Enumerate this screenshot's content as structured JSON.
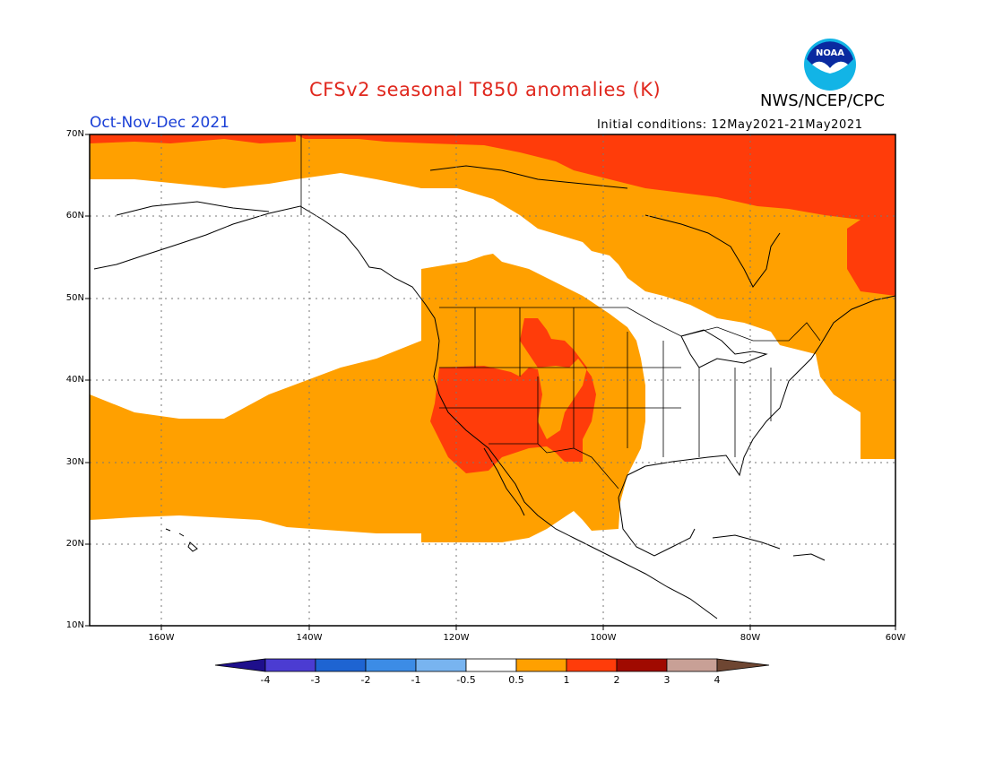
{
  "header": {
    "title": "CFSv2 seasonal T850 anomalies (K)",
    "agency": "NWS/NCEP/CPC",
    "season": "Oct-Nov-Dec 2021",
    "initial_conditions": "Initial conditions: 12May2021-21May2021",
    "logo_text": "NOAA"
  },
  "map": {
    "lon_range": [
      -172,
      -60
    ],
    "lat_range": [
      10,
      70
    ],
    "lat_labels": [
      "70N",
      "60N",
      "50N",
      "40N",
      "30N",
      "20N",
      "10N"
    ],
    "lon_labels": [
      "160W",
      "140W",
      "120W",
      "100W",
      "80W",
      "60W"
    ],
    "legend_levels": [
      "-4",
      "-3",
      "-2",
      "-1",
      "-0.5",
      "0.5",
      "1",
      "2",
      "3",
      "4"
    ],
    "legend_colors": [
      "#1e0f8c",
      "#4b3cd2",
      "#1e64d2",
      "#3c8ce6",
      "#78b4f0",
      "#ffffff",
      "#ffa000",
      "#ff3c0a",
      "#a00a00",
      "#c8a096",
      "#6e4632"
    ],
    "category_colors": {
      "warm_0_5_to_1": "#ffa000",
      "warm_1_to_2": "#ff3c0a"
    }
  }
}
